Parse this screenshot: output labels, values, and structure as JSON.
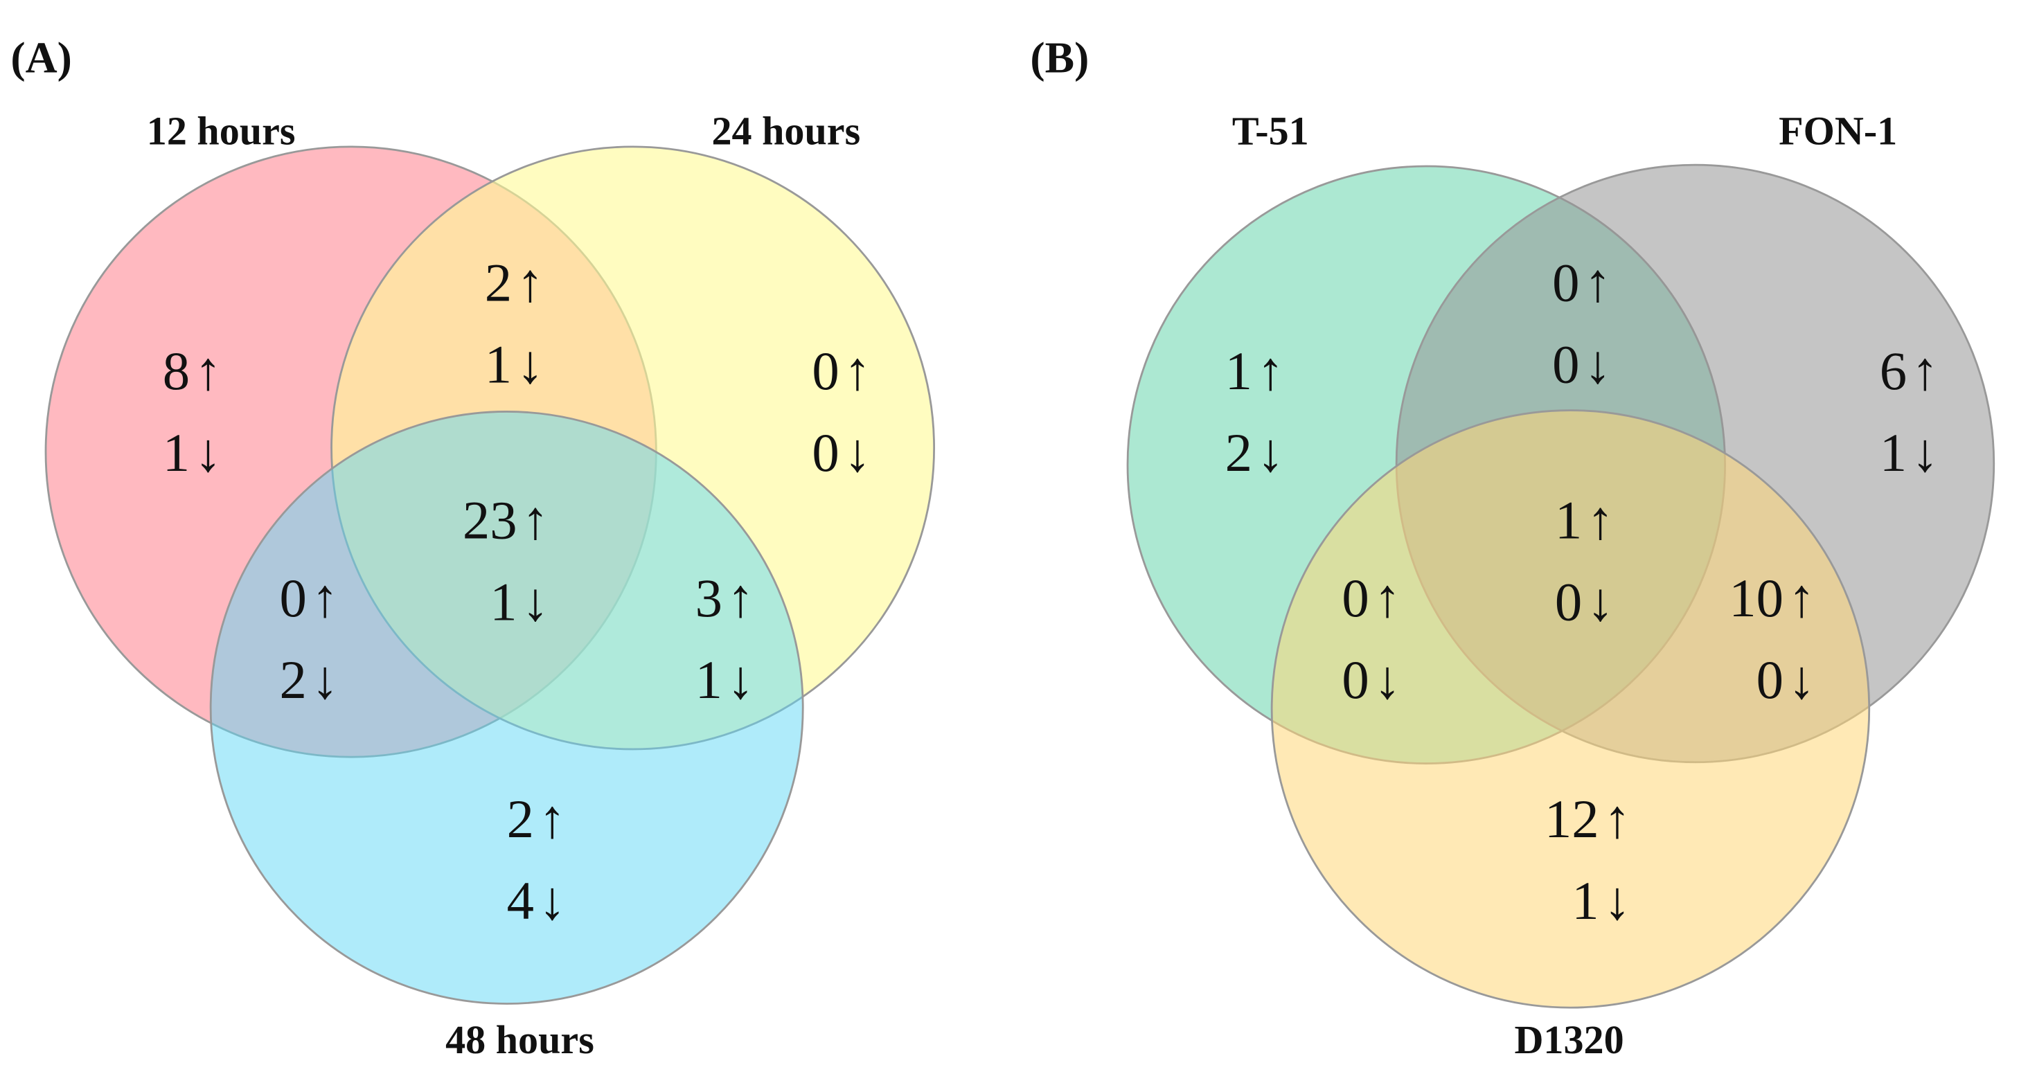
{
  "arrows": {
    "up": "↑",
    "down": "↓"
  },
  "panels": [
    {
      "label": "(A)",
      "sets": [
        {
          "name": "12 hours",
          "color": "rgba(255,128,140,0.55)"
        },
        {
          "name": "24 hours",
          "color": "rgba(255,250,150,0.6)"
        },
        {
          "name": "48 hours",
          "color": "rgba(95,215,245,0.5)"
        }
      ],
      "regions": [
        {
          "up": 8,
          "down": 1
        },
        {
          "up": 2,
          "down": 1
        },
        {
          "up": 0,
          "down": 0
        },
        {
          "up": 23,
          "down": 1
        },
        {
          "up": 0,
          "down": 2
        },
        {
          "up": 3,
          "down": 1
        },
        {
          "up": 2,
          "down": 4
        }
      ]
    },
    {
      "label": "(B)",
      "sets": [
        {
          "name": "T-51",
          "color": "rgba(90,210,165,0.5)"
        },
        {
          "name": "FON-1",
          "color": "rgba(150,150,150,0.55)"
        },
        {
          "name": "D1320",
          "color": "rgba(255,215,120,0.55)"
        }
      ],
      "regions": [
        {
          "up": 1,
          "down": 2
        },
        {
          "up": 0,
          "down": 0
        },
        {
          "up": 6,
          "down": 1
        },
        {
          "up": 1,
          "down": 0
        },
        {
          "up": 0,
          "down": 0
        },
        {
          "up": 10,
          "down": 0
        },
        {
          "up": 12,
          "down": 1
        }
      ]
    }
  ]
}
